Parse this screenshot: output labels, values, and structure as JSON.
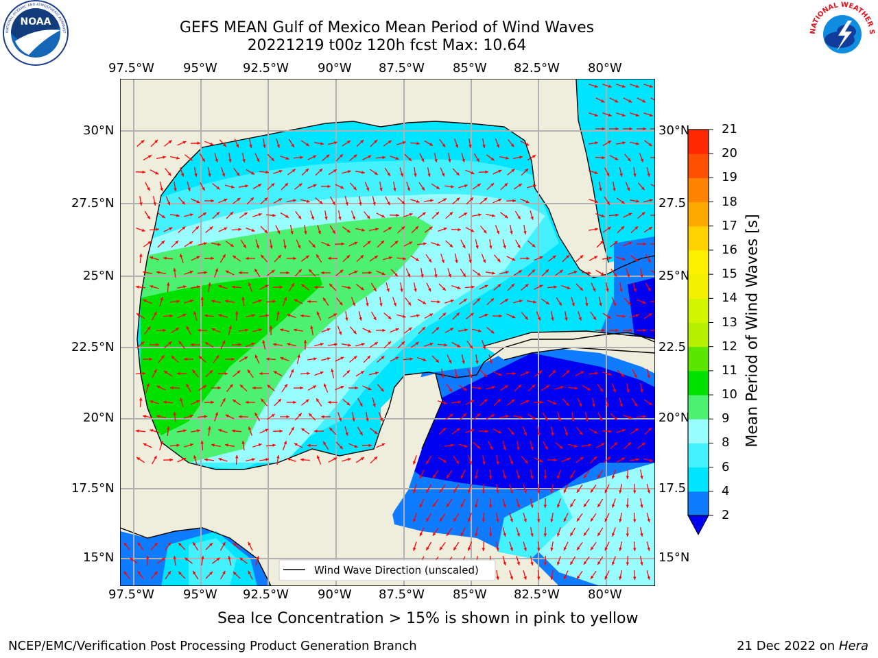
{
  "title_line1": "GEFS MEAN Gulf of Mexico Mean Period of Wind Waves",
  "title_line2": "20221219 t00z 120h fcst   Max: 10.64",
  "lon_ticks": [
    "97.5°W",
    "95°W",
    "92.5°W",
    "90°W",
    "87.5°W",
    "85°W",
    "82.5°W",
    "80°W"
  ],
  "lat_ticks_left": [
    "30°N",
    "27.5°N",
    "25°N",
    "22.5°N",
    "20°N",
    "17.5°N",
    "15°N"
  ],
  "lat_ticks_right": [
    "30°N",
    "27.5",
    "25°N",
    "22.5",
    "20°N",
    "17.5",
    "15°N"
  ],
  "legend_label": "Wind Wave Direction (unscaled)",
  "colorbar": {
    "label": "Mean Period of Wind Waves [s]",
    "ticks": [
      "2",
      "4",
      "6",
      "8",
      "9",
      "10",
      "11",
      "12",
      "13",
      "14",
      "15",
      "16",
      "17",
      "18",
      "19",
      "20",
      "21"
    ],
    "colors": [
      "#0f7bff",
      "#00e5ff",
      "#44f1ff",
      "#99fcff",
      "#4cf171",
      "#00e100",
      "#5ae600",
      "#b4f000",
      "#d2f500",
      "#f0f000",
      "#fff000",
      "#ffd200",
      "#ffaa00",
      "#ff8200",
      "#ff5000",
      "#ff2800",
      "#ff0000"
    ],
    "under_color": "#0000f0"
  },
  "note": "Sea Ice Concentration > 15% is shown in pink to yellow",
  "footer_left": "NCEP/EMC/Verification Post Processing Product Generation Branch",
  "footer_right_date": "21 Dec 2022 on",
  "footer_right_host": "Hera",
  "noaa_logo_text": "NOAA",
  "noaa_ring_text": "NATIONAL OCEANIC AND ATMOSPHERIC ADMINISTRATION · U.S. DEPARTMENT OF COMMERCE",
  "nws_ring_text": "NATIONAL WEATHER SERVICE",
  "map_colors": {
    "land": "#efeddb",
    "ocean_dark": "#0000f0",
    "ocean_blue": "#0f7bff",
    "ocean_cyan": "#00e5ff",
    "ocean_light_cyan": "#44f1ff",
    "ocean_pale": "#99fcff",
    "green_light": "#4cf171",
    "green": "#00e100",
    "arrow": "#ff0000",
    "grid": "#b0b0b0"
  }
}
